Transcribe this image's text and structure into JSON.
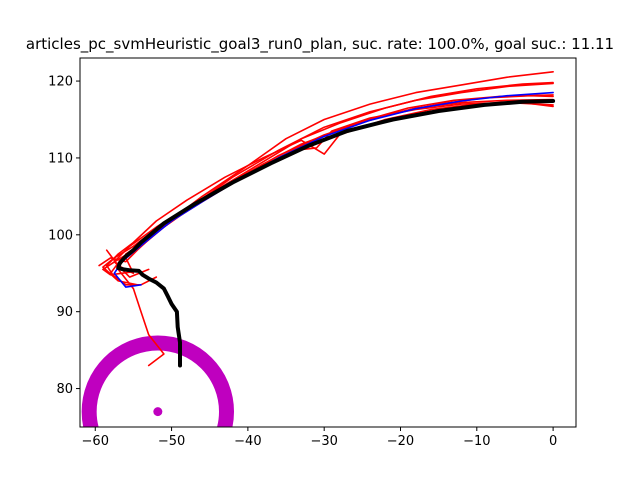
{
  "chart_data": {
    "type": "line",
    "title": "articles_pc_svmHeuristic_goal3_run0_plan, suc. rate: 100.0%, goal suc.: 11.11",
    "xlabel": "",
    "ylabel": "",
    "xlim": [
      -62,
      3
    ],
    "ylim": [
      75,
      123
    ],
    "xticks": [
      -60,
      -50,
      -40,
      -30,
      -20,
      -10,
      0
    ],
    "yticks": [
      80,
      90,
      100,
      110,
      120
    ],
    "x_tick_labels": [
      "−60",
      "−50",
      "−40",
      "−30",
      "−20",
      "−10",
      "0"
    ],
    "y_tick_labels": [
      "80",
      "90",
      "100",
      "110",
      "120"
    ],
    "grid": false,
    "legend": "none",
    "colors": {
      "particles": "#ff0000",
      "mean": "#0000ff",
      "plan": "#000000",
      "goal": "#bf00bf"
    },
    "goal": {
      "center": [
        -51.8,
        77.0
      ],
      "radius": 9.0
    },
    "series": [
      {
        "role": "particles",
        "color": "#ff0000",
        "points": [
          [
            -53,
            83
          ],
          [
            -51,
            84.5
          ],
          [
            -53,
            87
          ],
          [
            -54,
            90
          ],
          [
            -55,
            93
          ],
          [
            -57,
            95.5
          ],
          [
            -56,
            97.5
          ],
          [
            -53,
            99.5
          ],
          [
            -50,
            102
          ],
          [
            -46,
            105
          ],
          [
            -40,
            109
          ],
          [
            -35,
            112.5
          ],
          [
            -30,
            115
          ],
          [
            -24,
            117
          ],
          [
            -18,
            118.5
          ],
          [
            -12,
            119.5
          ],
          [
            -6,
            120.5
          ],
          [
            0,
            121.2
          ]
        ]
      },
      {
        "role": "particles",
        "color": "#ff0000",
        "points": [
          [
            -52,
            94.5
          ],
          [
            -54,
            93.5
          ],
          [
            -56,
            93.5
          ],
          [
            -58,
            95
          ],
          [
            -56.5,
            97
          ],
          [
            -54,
            99
          ],
          [
            -51,
            101.5
          ],
          [
            -47,
            104
          ],
          [
            -42,
            107.5
          ],
          [
            -36,
            111
          ],
          [
            -30,
            114
          ],
          [
            -24,
            116
          ],
          [
            -18,
            117.5
          ],
          [
            -12,
            118.5
          ],
          [
            -6,
            119.3
          ],
          [
            0,
            119.7
          ]
        ]
      },
      {
        "role": "particles",
        "color": "#ff0000",
        "points": [
          [
            -53,
            95.5
          ],
          [
            -55.5,
            94.5
          ],
          [
            -57.5,
            96.5
          ],
          [
            -55.5,
            98.5
          ],
          [
            -52,
            101
          ],
          [
            -48,
            103.5
          ],
          [
            -43,
            106.5
          ],
          [
            -38,
            109.5
          ],
          [
            -33,
            112.5
          ],
          [
            -28,
            114.5
          ],
          [
            -22,
            116.5
          ],
          [
            -16,
            118
          ],
          [
            -10,
            119
          ],
          [
            -4,
            119.6
          ],
          [
            0,
            119.8
          ]
        ]
      },
      {
        "role": "particles",
        "color": "#ff0000",
        "points": [
          [
            -55,
            95.2
          ],
          [
            -58,
            94.8
          ],
          [
            -59,
            95.5
          ],
          [
            -57,
            96.8
          ],
          [
            -54,
            98.5
          ],
          [
            -51,
            101
          ],
          [
            -47,
            103.8
          ],
          [
            -42,
            106.8
          ],
          [
            -36,
            110
          ],
          [
            -31,
            112.5
          ],
          [
            -25,
            114.8
          ],
          [
            -19,
            116.5
          ],
          [
            -13,
            117.5
          ],
          [
            -7,
            118
          ],
          [
            0,
            118.2
          ]
        ]
      },
      {
        "role": "particles",
        "color": "#ff0000",
        "points": [
          [
            -58.5,
            98
          ],
          [
            -57,
            96
          ],
          [
            -55,
            95
          ],
          [
            -56,
            97
          ],
          [
            -54,
            98.8
          ],
          [
            -50.5,
            101.5
          ],
          [
            -46,
            104.3
          ],
          [
            -41,
            107.3
          ],
          [
            -36,
            110.3
          ],
          [
            -30,
            113
          ],
          [
            -24,
            115
          ],
          [
            -18,
            116.5
          ],
          [
            -12,
            117.2
          ],
          [
            -6,
            117.5
          ],
          [
            0,
            117.6
          ]
        ]
      },
      {
        "role": "particles",
        "color": "#ff0000",
        "points": [
          [
            -59.5,
            96
          ],
          [
            -58,
            97
          ],
          [
            -56,
            96.5
          ],
          [
            -54.5,
            98
          ],
          [
            -52,
            100.3
          ],
          [
            -48.5,
            102.8
          ],
          [
            -44,
            105.6
          ],
          [
            -39,
            108.5
          ],
          [
            -34,
            111
          ],
          [
            -31,
            111.3
          ],
          [
            -29,
            113.5
          ],
          [
            -24,
            115.2
          ],
          [
            -18,
            116.3
          ],
          [
            -12,
            117
          ],
          [
            -6,
            117.2
          ],
          [
            0,
            116.9
          ]
        ]
      },
      {
        "role": "particles",
        "color": "#ff0000",
        "points": [
          [
            -57.5,
            94.5
          ],
          [
            -58.5,
            96
          ],
          [
            -57,
            97.5
          ],
          [
            -55,
            99
          ],
          [
            -52,
            101.8
          ],
          [
            -48,
            104.5
          ],
          [
            -43,
            107.5
          ],
          [
            -38,
            110
          ],
          [
            -33,
            112.3
          ],
          [
            -30,
            110.5
          ],
          [
            -28,
            113
          ],
          [
            -22,
            115
          ],
          [
            -16,
            116.3
          ],
          [
            -10,
            117
          ],
          [
            -4,
            117.2
          ],
          [
            0,
            116.7
          ]
        ]
      },
      {
        "role": "particles",
        "color": "#ff0000",
        "points": [
          [
            -54.5,
            93.5
          ],
          [
            -57,
            94
          ],
          [
            -59,
            95.8
          ],
          [
            -57.5,
            97
          ],
          [
            -55,
            98.5
          ],
          [
            -52,
            100.8
          ],
          [
            -48,
            103.4
          ],
          [
            -43,
            106.4
          ],
          [
            -38,
            109.2
          ],
          [
            -33,
            111.8
          ],
          [
            -27,
            114
          ],
          [
            -21,
            115.8
          ],
          [
            -15,
            117
          ],
          [
            -9,
            117.8
          ],
          [
            -3,
            118.1
          ],
          [
            0,
            118
          ]
        ]
      },
      {
        "role": "mean",
        "color": "#0000ff",
        "points": [
          [
            -54,
            93.5
          ],
          [
            -56,
            93.2
          ],
          [
            -57.5,
            95
          ],
          [
            -56.5,
            96.5
          ],
          [
            -54,
            98.6
          ],
          [
            -50,
            101.8
          ],
          [
            -46,
            104.3
          ],
          [
            -41,
            107.3
          ],
          [
            -36,
            110
          ],
          [
            -30,
            112.8
          ],
          [
            -24,
            114.9
          ],
          [
            -18,
            116.4
          ],
          [
            -12,
            117.4
          ],
          [
            -6,
            118.1
          ],
          [
            0,
            118.5
          ]
        ]
      },
      {
        "role": "plan",
        "color": "#000000",
        "points": [
          [
            -48.9,
            83
          ],
          [
            -48.9,
            86
          ],
          [
            -49.2,
            88
          ],
          [
            -49.3,
            90
          ],
          [
            -50,
            91
          ],
          [
            -50.5,
            92
          ],
          [
            -51,
            93
          ],
          [
            -52,
            93.8
          ],
          [
            -53,
            94.3
          ],
          [
            -53.8,
            94.8
          ],
          [
            -54.3,
            95.3
          ],
          [
            -55.5,
            95.4
          ],
          [
            -56.3,
            95.5
          ],
          [
            -57,
            95.7
          ],
          [
            -56.8,
            96.3
          ],
          [
            -56,
            97.2
          ],
          [
            -55,
            98
          ],
          [
            -54,
            99
          ],
          [
            -51,
            101.5
          ],
          [
            -47,
            104
          ],
          [
            -42,
            106.8
          ],
          [
            -37,
            109.3
          ],
          [
            -32,
            111.6
          ],
          [
            -27,
            113.5
          ],
          [
            -21,
            115
          ],
          [
            -15,
            116.1
          ],
          [
            -9,
            116.9
          ],
          [
            -4,
            117.3
          ],
          [
            0,
            117.4
          ]
        ]
      }
    ]
  }
}
